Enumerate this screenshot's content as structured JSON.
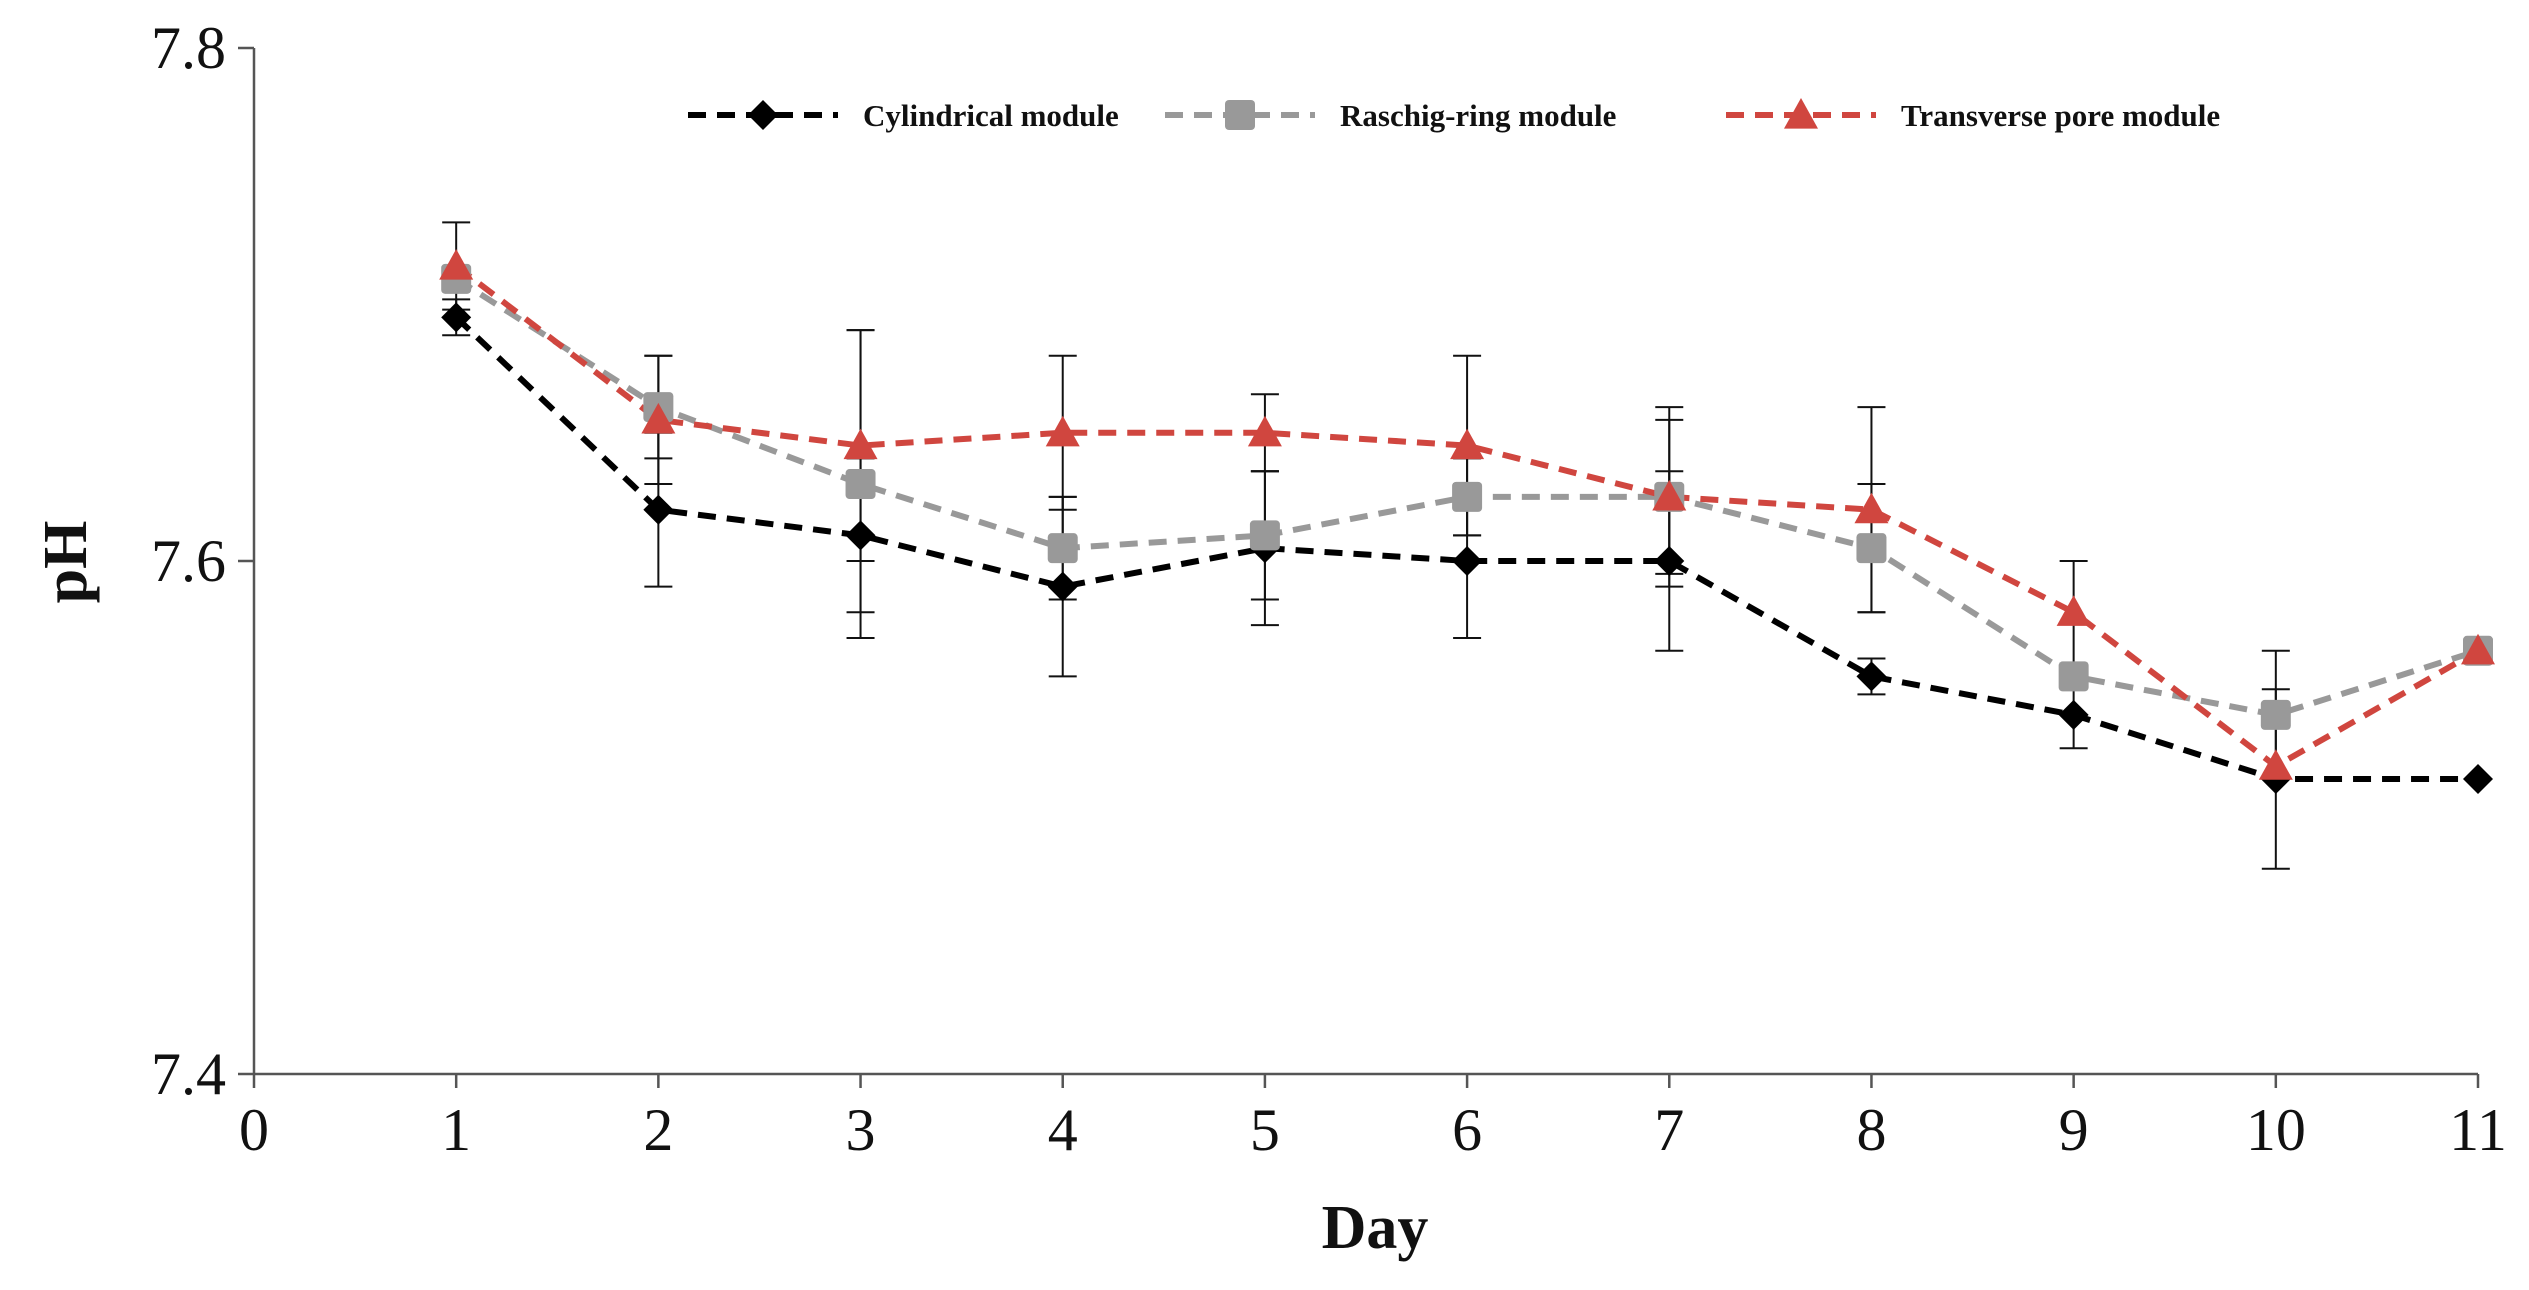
{
  "chart_data": {
    "type": "line",
    "title": "",
    "xlabel": "Day",
    "ylabel": "pH",
    "xlim": [
      0,
      11
    ],
    "ylim": [
      7.4,
      7.8
    ],
    "x_ticks": [
      "0",
      "1",
      "2",
      "3",
      "4",
      "5",
      "6",
      "7",
      "8",
      "9",
      "10",
      "11"
    ],
    "y_ticks": [
      "7.4",
      "7.6",
      "7.8"
    ],
    "grid": false,
    "legend_position": "top",
    "series": [
      {
        "name": "Cylindrical module",
        "color": "#000000",
        "marker": "diamond",
        "x": [
          1,
          2,
          3,
          4,
          5,
          6,
          7,
          8,
          9,
          10,
          11
        ],
        "values": [
          7.695,
          7.62,
          7.61,
          7.59,
          7.605,
          7.6,
          7.6,
          7.555,
          7.54,
          7.515,
          7.515
        ],
        "error": [
          0.007,
          0.03,
          0.03,
          0.035,
          0.03,
          0.03,
          0.035,
          0.007,
          0.013,
          0.035,
          0
        ]
      },
      {
        "name": "Raschig-ring module",
        "color": "#999999",
        "marker": "square",
        "x": [
          1,
          2,
          3,
          4,
          5,
          6,
          7,
          8,
          9,
          10,
          11
        ],
        "values": [
          7.71,
          7.66,
          7.63,
          7.605,
          7.61,
          7.625,
          7.625,
          7.605,
          7.555,
          7.54,
          7.565
        ],
        "error": [
          0,
          0.02,
          0.06,
          0.02,
          0.025,
          0.015,
          0.035,
          0.025,
          0,
          0.025,
          0
        ]
      },
      {
        "name": "Transverse pore module",
        "color": "#d0463f",
        "marker": "triangle",
        "x": [
          1,
          2,
          3,
          4,
          5,
          6,
          7,
          8,
          9,
          10,
          11
        ],
        "values": [
          7.715,
          7.655,
          7.645,
          7.65,
          7.65,
          7.645,
          7.625,
          7.62,
          7.58,
          7.52,
          7.565
        ],
        "error": [
          0.017,
          0.025,
          0.045,
          0.03,
          0.015,
          0.035,
          0.03,
          0.04,
          0.02,
          0,
          0
        ]
      }
    ]
  }
}
